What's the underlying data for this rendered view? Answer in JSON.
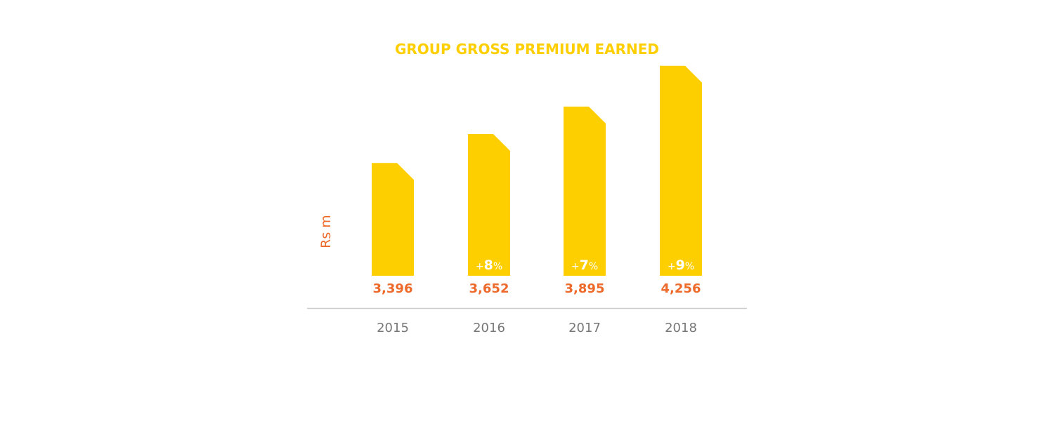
{
  "colors": {
    "bar": "#FDCF00",
    "title": "#FDCF00",
    "value": "#EE6A2B",
    "axis_label": "#EE6A2B",
    "growth": "#FFFFFF",
    "year": "#777777",
    "baseline": "#CCCCCC"
  },
  "chart_data": {
    "type": "bar",
    "title": "GROUP GROSS PREMIUM EARNED",
    "ylabel": "Rs m",
    "xlabel": "",
    "categories": [
      "2015",
      "2016",
      "2017",
      "2018"
    ],
    "values": [
      3396,
      3652,
      3895,
      4256
    ],
    "value_labels": [
      "3,396",
      "3,652",
      "3,895",
      "4,256"
    ],
    "growth_labels": [
      null,
      {
        "sign": "+",
        "number": "8",
        "unit": "%"
      },
      {
        "sign": "+",
        "number": "7",
        "unit": "%"
      },
      {
        "sign": "+",
        "number": "9",
        "unit": "%"
      }
    ],
    "grid": false,
    "legend": "none"
  }
}
